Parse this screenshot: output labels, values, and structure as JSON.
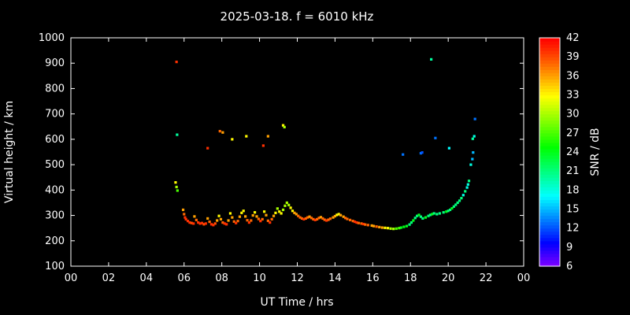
{
  "title": "2025-03-18. f = 6010 kHz",
  "chart_data": {
    "type": "scatter",
    "title": "2025-03-18. f = 6010 kHz",
    "xlabel": "UT Time / hrs",
    "ylabel": "Virtual height / km",
    "colorbar_label": "SNR / dB",
    "xlim": [
      0,
      24
    ],
    "ylim": [
      100,
      1000
    ],
    "x_tick_values": [
      0,
      2,
      4,
      6,
      8,
      10,
      12,
      14,
      16,
      18,
      20,
      22,
      24
    ],
    "x_tick_labels": [
      "00",
      "02",
      "04",
      "06",
      "08",
      "10",
      "12",
      "14",
      "16",
      "18",
      "20",
      "22",
      "00"
    ],
    "y_tick_values": [
      100,
      200,
      300,
      400,
      500,
      600,
      700,
      800,
      900,
      1000
    ],
    "colorbar_range": [
      6,
      42
    ],
    "colorbar_ticks": [
      6,
      9,
      12,
      15,
      18,
      21,
      24,
      27,
      30,
      33,
      36,
      39,
      42
    ],
    "background_color": "#000000",
    "axis_color": "#ffffff",
    "legend_position": "right-colorbar",
    "grid": false,
    "points_format": "[ut_hours, virtual_height_km, snr_db]",
    "points": [
      [
        5.55,
        430,
        33
      ],
      [
        5.6,
        412,
        30
      ],
      [
        5.65,
        398,
        27
      ],
      [
        5.95,
        322,
        36
      ],
      [
        6.0,
        305,
        38
      ],
      [
        6.05,
        292,
        40
      ],
      [
        6.1,
        285,
        40
      ],
      [
        6.2,
        278,
        40
      ],
      [
        6.3,
        272,
        40
      ],
      [
        6.4,
        270,
        39
      ],
      [
        6.5,
        268,
        40
      ],
      [
        6.55,
        296,
        36
      ],
      [
        6.65,
        282,
        38
      ],
      [
        6.75,
        272,
        40
      ],
      [
        6.85,
        268,
        40
      ],
      [
        6.95,
        270,
        40
      ],
      [
        7.05,
        265,
        39
      ],
      [
        7.15,
        268,
        40
      ],
      [
        7.25,
        288,
        36
      ],
      [
        7.35,
        275,
        38
      ],
      [
        7.45,
        265,
        40
      ],
      [
        7.55,
        262,
        40
      ],
      [
        7.65,
        268,
        39
      ],
      [
        7.75,
        280,
        36
      ],
      [
        7.85,
        298,
        33
      ],
      [
        7.95,
        285,
        36
      ],
      [
        8.05,
        272,
        38
      ],
      [
        8.15,
        268,
        40
      ],
      [
        8.25,
        265,
        40
      ],
      [
        8.35,
        280,
        36
      ],
      [
        8.45,
        308,
        33
      ],
      [
        8.55,
        292,
        36
      ],
      [
        8.65,
        276,
        38
      ],
      [
        8.75,
        270,
        40
      ],
      [
        8.85,
        278,
        38
      ],
      [
        8.95,
        295,
        36
      ],
      [
        9.05,
        310,
        33
      ],
      [
        9.15,
        318,
        33
      ],
      [
        9.25,
        296,
        36
      ],
      [
        9.35,
        281,
        38
      ],
      [
        9.45,
        272,
        40
      ],
      [
        9.55,
        280,
        38
      ],
      [
        9.65,
        300,
        36
      ],
      [
        9.75,
        312,
        33
      ],
      [
        9.85,
        296,
        36
      ],
      [
        9.95,
        286,
        38
      ],
      [
        10.05,
        278,
        40
      ],
      [
        10.15,
        285,
        38
      ],
      [
        10.25,
        315,
        33
      ],
      [
        10.35,
        301,
        36
      ],
      [
        10.45,
        279,
        38
      ],
      [
        10.55,
        272,
        40
      ],
      [
        10.65,
        285,
        38
      ],
      [
        10.75,
        298,
        36
      ],
      [
        10.85,
        310,
        33
      ],
      [
        10.95,
        327,
        30
      ],
      [
        11.05,
        315,
        33
      ],
      [
        11.15,
        308,
        33
      ],
      [
        11.25,
        322,
        30
      ],
      [
        11.35,
        338,
        30
      ],
      [
        11.45,
        350,
        30
      ],
      [
        11.55,
        341,
        30
      ],
      [
        11.65,
        330,
        33
      ],
      [
        11.75,
        318,
        33
      ],
      [
        11.85,
        310,
        36
      ],
      [
        11.95,
        305,
        36
      ],
      [
        12.05,
        298,
        38
      ],
      [
        12.15,
        292,
        38
      ],
      [
        12.25,
        288,
        38
      ],
      [
        12.35,
        285,
        40
      ],
      [
        12.45,
        288,
        38
      ],
      [
        12.55,
        292,
        38
      ],
      [
        12.65,
        295,
        36
      ],
      [
        12.75,
        290,
        38
      ],
      [
        12.85,
        285,
        38
      ],
      [
        12.95,
        282,
        40
      ],
      [
        13.05,
        285,
        38
      ],
      [
        13.15,
        290,
        38
      ],
      [
        13.25,
        293,
        36
      ],
      [
        13.35,
        288,
        38
      ],
      [
        13.45,
        283,
        38
      ],
      [
        13.55,
        280,
        40
      ],
      [
        13.65,
        283,
        38
      ],
      [
        13.75,
        287,
        38
      ],
      [
        13.9,
        292,
        36
      ],
      [
        14.0,
        297,
        36
      ],
      [
        14.1,
        302,
        33
      ],
      [
        14.2,
        305,
        33
      ],
      [
        14.3,
        301,
        36
      ],
      [
        14.45,
        295,
        36
      ],
      [
        14.55,
        290,
        38
      ],
      [
        14.65,
        286,
        38
      ],
      [
        14.8,
        282,
        38
      ],
      [
        14.95,
        278,
        38
      ],
      [
        15.05,
        275,
        40
      ],
      [
        15.15,
        272,
        40
      ],
      [
        15.25,
        270,
        38
      ],
      [
        15.4,
        268,
        38
      ],
      [
        15.5,
        266,
        40
      ],
      [
        15.6,
        264,
        38
      ],
      [
        15.75,
        262,
        38
      ],
      [
        15.95,
        260,
        36
      ],
      [
        16.05,
        258,
        36
      ],
      [
        16.2,
        256,
        38
      ],
      [
        16.35,
        254,
        36
      ],
      [
        16.5,
        252,
        36
      ],
      [
        16.65,
        251,
        33
      ],
      [
        16.8,
        250,
        33
      ],
      [
        16.95,
        248,
        30
      ],
      [
        17.1,
        247,
        30
      ],
      [
        17.25,
        248,
        27
      ],
      [
        17.4,
        250,
        27
      ],
      [
        17.5,
        252,
        24
      ],
      [
        17.65,
        255,
        24
      ],
      [
        17.8,
        258,
        24
      ],
      [
        17.95,
        264,
        21
      ],
      [
        18.05,
        272,
        21
      ],
      [
        18.15,
        280,
        24
      ],
      [
        18.25,
        290,
        21
      ],
      [
        18.35,
        298,
        21
      ],
      [
        18.45,
        302,
        24
      ],
      [
        18.55,
        295,
        21
      ],
      [
        18.65,
        288,
        21
      ],
      [
        18.8,
        292,
        24
      ],
      [
        18.95,
        298,
        21
      ],
      [
        19.05,
        302,
        21
      ],
      [
        19.15,
        305,
        24
      ],
      [
        19.25,
        308,
        21
      ],
      [
        19.4,
        305,
        21
      ],
      [
        19.55,
        308,
        21
      ],
      [
        19.75,
        312,
        21
      ],
      [
        19.9,
        315,
        24
      ],
      [
        20.0,
        318,
        21
      ],
      [
        20.1,
        322,
        21
      ],
      [
        20.2,
        328,
        24
      ],
      [
        20.3,
        335,
        21
      ],
      [
        20.4,
        342,
        21
      ],
      [
        20.5,
        350,
        21
      ],
      [
        20.6,
        358,
        21
      ],
      [
        20.7,
        368,
        21
      ],
      [
        20.8,
        380,
        18
      ],
      [
        20.9,
        395,
        21
      ],
      [
        21.0,
        410,
        18
      ],
      [
        21.05,
        422,
        18
      ],
      [
        21.1,
        436,
        21
      ],
      [
        5.6,
        905,
        40
      ],
      [
        5.63,
        618,
        20
      ],
      [
        7.25,
        565,
        40
      ],
      [
        7.9,
        632,
        38
      ],
      [
        8.05,
        627,
        36
      ],
      [
        8.55,
        600,
        33
      ],
      [
        9.3,
        612,
        33
      ],
      [
        10.2,
        575,
        40
      ],
      [
        10.45,
        612,
        36
      ],
      [
        11.25,
        655,
        33
      ],
      [
        11.32,
        648,
        30
      ],
      [
        17.6,
        540,
        13
      ],
      [
        18.55,
        545,
        13
      ],
      [
        18.62,
        548,
        12
      ],
      [
        19.1,
        915,
        20
      ],
      [
        19.32,
        605,
        13
      ],
      [
        20.05,
        565,
        17
      ],
      [
        21.2,
        500,
        18
      ],
      [
        21.28,
        522,
        15
      ],
      [
        21.32,
        548,
        15
      ],
      [
        21.3,
        602,
        20
      ],
      [
        21.38,
        612,
        18
      ],
      [
        21.42,
        680,
        13
      ]
    ]
  }
}
